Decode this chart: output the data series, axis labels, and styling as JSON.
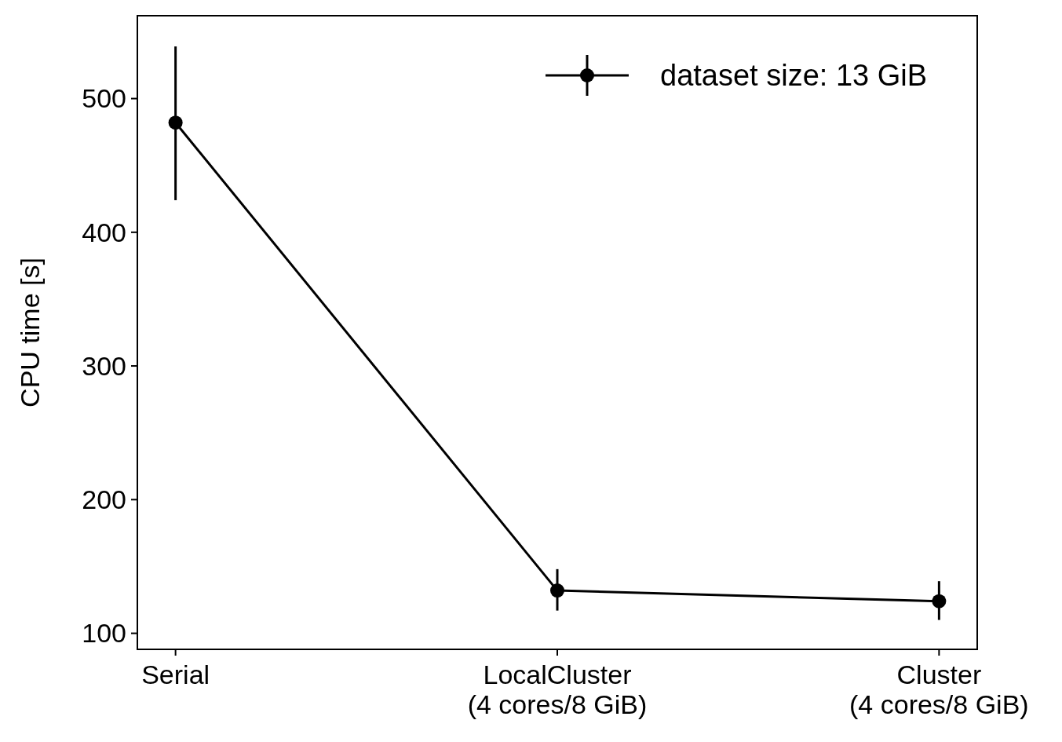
{
  "chart_data": {
    "type": "line",
    "ylabel": "CPU time [s]",
    "categories": [
      "Serial",
      "LocalCluster\n(4 cores/8 GiB)",
      "Cluster\n(4 cores/8 GiB)"
    ],
    "series": [
      {
        "name": "dataset size: 13 GiB",
        "color": "#000000",
        "values": [
          482,
          132,
          124
        ],
        "errors": [
          [
            424,
            539
          ],
          [
            117,
            148
          ],
          [
            110,
            139
          ]
        ]
      }
    ],
    "ylim": [
      88,
      562
    ],
    "yticks": [
      100,
      200,
      300,
      400,
      500
    ],
    "marker": "circle",
    "line_style": "solid",
    "legend": "top right",
    "grid": false
  }
}
